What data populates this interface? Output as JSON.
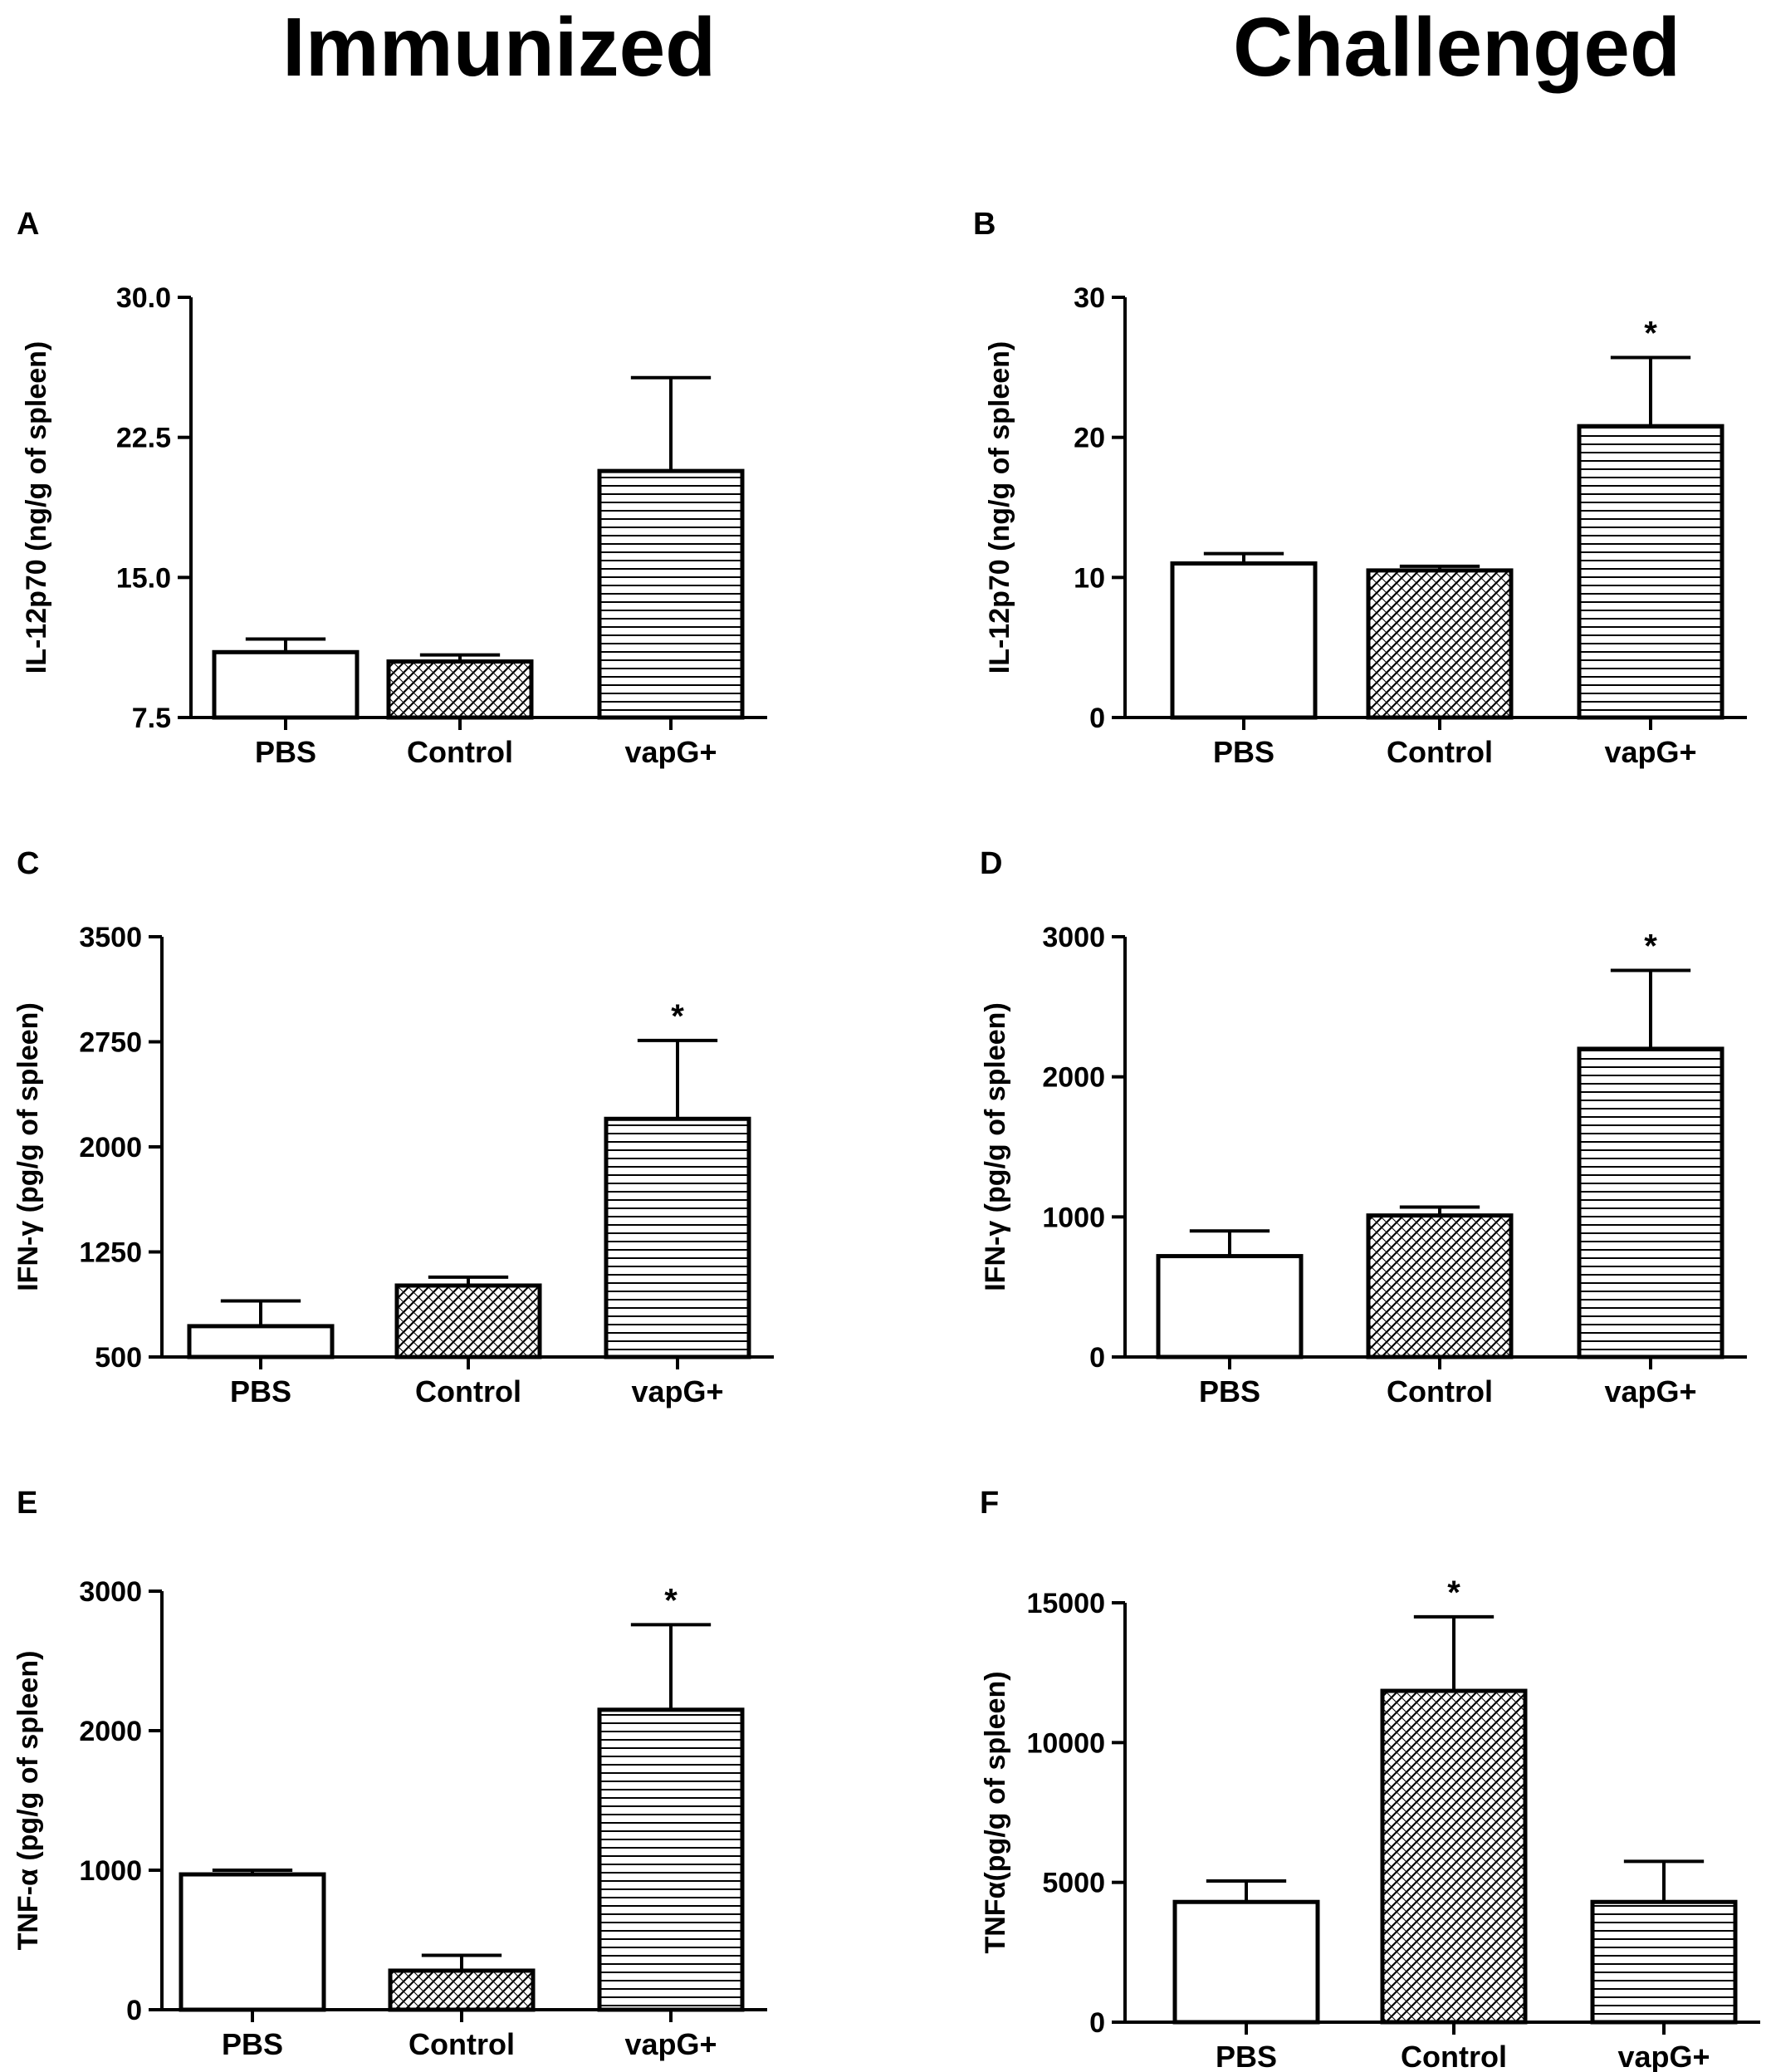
{
  "headings": {
    "left": "Immunized",
    "right": "Challenged"
  },
  "chart_data": [
    {
      "panel_id": "A",
      "type": "bar",
      "ylabel": "IL-12p70 (ng/g of spleen)",
      "categories": [
        "PBS",
        "Control",
        "vapG+"
      ],
      "values": [
        11.0,
        10.5,
        20.7
      ],
      "errors": [
        0.7,
        0.35,
        5.0
      ],
      "ylim": [
        7.5,
        30.0
      ],
      "yticks": [
        7.5,
        15.0,
        22.5,
        30.0
      ],
      "ytick_labels": [
        "7.5",
        "15.0",
        "22.5",
        "30.0"
      ],
      "significance": [
        "",
        "",
        ""
      ]
    },
    {
      "panel_id": "B",
      "type": "bar",
      "ylabel": "IL-12p70 (ng/g of spleen)",
      "categories": [
        "PBS",
        "Control",
        "vapG+"
      ],
      "values": [
        11.0,
        10.5,
        20.8
      ],
      "errors": [
        0.7,
        0.3,
        4.9
      ],
      "ylim": [
        0,
        30
      ],
      "yticks": [
        0,
        10,
        20,
        30
      ],
      "ytick_labels": [
        "0",
        "10",
        "20",
        "30"
      ],
      "significance": [
        "",
        "",
        "*"
      ]
    },
    {
      "panel_id": "C",
      "type": "bar",
      "ylabel": "IFN-γ (pg/g of spleen)",
      "categories": [
        "PBS",
        "Control",
        "vapG+"
      ],
      "values": [
        720,
        1010,
        2200
      ],
      "errors": [
        180,
        60,
        560
      ],
      "ylim": [
        500,
        3500
      ],
      "yticks": [
        500,
        1250,
        2000,
        2750,
        3500
      ],
      "ytick_labels": [
        "500",
        "1250",
        "2000",
        "2750",
        "3500"
      ],
      "significance": [
        "",
        "",
        "*"
      ]
    },
    {
      "panel_id": "D",
      "type": "bar",
      "ylabel": "IFN-γ (pg/g of spleen)",
      "categories": [
        "PBS",
        "Control",
        "vapG+"
      ],
      "values": [
        720,
        1010,
        2200
      ],
      "errors": [
        180,
        60,
        560
      ],
      "ylim": [
        0,
        3000
      ],
      "yticks": [
        0,
        1000,
        2000,
        3000
      ],
      "ytick_labels": [
        "0",
        "1000",
        "2000",
        "3000"
      ],
      "significance": [
        "",
        "",
        "*"
      ]
    },
    {
      "panel_id": "E",
      "type": "bar",
      "ylabel": "TNF-α (pg/g of spleen)",
      "categories": [
        "PBS",
        "Control",
        "vapG+"
      ],
      "values": [
        970,
        280,
        2150
      ],
      "errors": [
        30,
        110,
        610
      ],
      "ylim": [
        0,
        3000
      ],
      "yticks": [
        0,
        1000,
        2000,
        3000
      ],
      "ytick_labels": [
        "0",
        "1000",
        "2000",
        "3000"
      ],
      "significance": [
        "",
        "",
        "*"
      ]
    },
    {
      "panel_id": "F",
      "type": "bar",
      "ylabel": "TNFα(pg/g of spleen)",
      "categories": [
        "PBS",
        "Control",
        "vapG+"
      ],
      "values": [
        4300,
        11850,
        4300
      ],
      "errors": [
        750,
        2650,
        1450
      ],
      "ylim": [
        0,
        15000
      ],
      "yticks": [
        0,
        5000,
        10000,
        15000
      ],
      "ytick_labels": [
        "0",
        "5000",
        "10000",
        "15000"
      ],
      "significance": [
        "",
        "*",
        ""
      ]
    }
  ]
}
